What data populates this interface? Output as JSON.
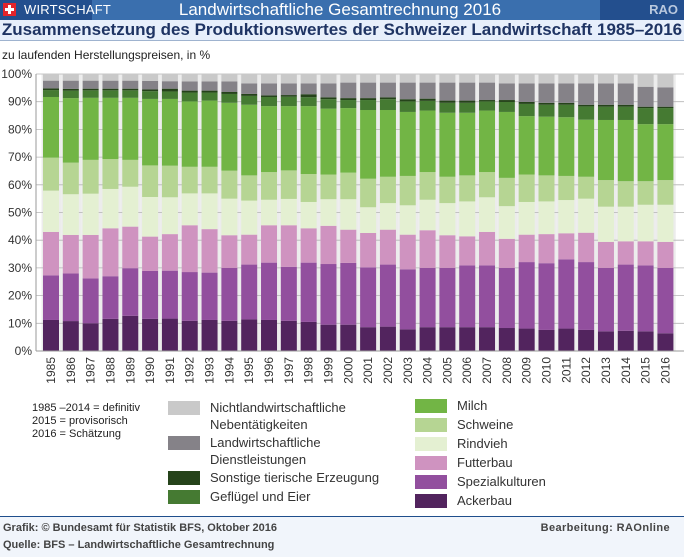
{
  "header": {
    "section_label": "WIRTSCHAFT",
    "title": "Landwirtschaftliche Gesamtrechnung 2016",
    "brand": "RAO",
    "flag_icon": "swiss-flag-icon"
  },
  "subheader": {
    "title": "Zusammensetzung des Produktionswertes der Schweizer Landwirtschaft 1985–2016"
  },
  "notes": {
    "unit": "zu laufenden Herstellungspreisen, in %",
    "status_lines": [
      "1985 –2014 = definitiv",
      "2015 = provisorisch",
      "2016 = Schätzung"
    ]
  },
  "footer": {
    "graphic_credit": "Grafik: © Bundesamt für Statistik BFS, Oktober 2016",
    "source": "Quelle: BFS – Landwirtschaftliche Gesamtrechnung",
    "editor": "Bearbeitung: RAOnline"
  },
  "chart_data": {
    "type": "bar",
    "stacked": true,
    "title": "Zusammensetzung des Produktionswertes der Schweizer Landwirtschaft 1985–2016",
    "xlabel": "",
    "ylabel": "zu laufenden Herstellungspreisen, in %",
    "ylim": [
      0,
      100
    ],
    "yticks": [
      "0%",
      "10%",
      "20%",
      "30%",
      "40%",
      "50%",
      "60%",
      "70%",
      "80%",
      "90%",
      "100%"
    ],
    "grid": true,
    "legend_position": "bottom",
    "categories": [
      "1985",
      "1986",
      "1987",
      "1988",
      "1989",
      "1990",
      "1991",
      "1992",
      "1993",
      "1994",
      "1995",
      "1996",
      "1997",
      "1998",
      "1999",
      "2000",
      "2001",
      "2002",
      "2003",
      "2004",
      "2005",
      "2006",
      "2007",
      "2008",
      "2009",
      "2010",
      "2011",
      "2012",
      "2013",
      "2014",
      "2015",
      "2016"
    ],
    "series": [
      {
        "name": "Ackerbau",
        "color": "#52245e",
        "values": [
          11.2,
          10.8,
          10.0,
          11.6,
          12.7,
          11.6,
          11.7,
          10.9,
          11.2,
          10.9,
          11.4,
          11.2,
          10.9,
          10.5,
          9.5,
          9.5,
          8.6,
          8.8,
          7.8,
          8.6,
          8.6,
          8.6,
          8.6,
          8.3,
          8.1,
          7.6,
          8.1,
          7.6,
          7.1,
          7.3,
          7.1,
          6.4
        ]
      },
      {
        "name": "Spezialkulturen",
        "color": "#924f9e",
        "values": [
          16.1,
          17.2,
          16.2,
          15.4,
          17.2,
          17.3,
          17.3,
          17.6,
          17.1,
          19.1,
          19.8,
          20.7,
          19.5,
          21.4,
          21.9,
          22.3,
          21.6,
          22.4,
          21.7,
          21.4,
          21.4,
          22.3,
          22.3,
          21.7,
          24.0,
          24.1,
          25.0,
          24.5,
          22.9,
          23.9,
          23.8,
          23.6
        ]
      },
      {
        "name": "Futterbau",
        "color": "#cf93c0",
        "values": [
          15.7,
          13.9,
          15.7,
          17.3,
          15.0,
          12.4,
          13.2,
          16.9,
          15.7,
          11.8,
          10.8,
          13.5,
          15.0,
          12.4,
          13.8,
          12.0,
          12.4,
          12.6,
          12.5,
          13.6,
          11.8,
          10.5,
          12.1,
          10.5,
          9.9,
          10.5,
          9.4,
          10.6,
          9.4,
          8.4,
          8.7,
          9.4
        ]
      },
      {
        "name": "Rindvieh",
        "color": "#e4f0d2",
        "values": [
          14.9,
          14.7,
          14.9,
          14.2,
          14.4,
          14.3,
          13.3,
          11.5,
          12.9,
          13.2,
          12.3,
          9.2,
          9.5,
          9.5,
          9.6,
          11.0,
          9.3,
          9.6,
          10.6,
          11.0,
          11.6,
          12.6,
          12.5,
          11.8,
          11.8,
          11.8,
          12.0,
          12.3,
          12.7,
          12.5,
          13.2,
          13.4
        ]
      },
      {
        "name": "Schweine",
        "color": "#b6d593",
        "values": [
          11.9,
          11.4,
          12.2,
          10.8,
          9.7,
          11.4,
          11.4,
          9.6,
          9.6,
          10.1,
          9.1,
          10.0,
          10.3,
          10.1,
          8.9,
          9.6,
          10.3,
          9.5,
          10.6,
          10.0,
          9.5,
          9.4,
          9.1,
          10.2,
          9.9,
          9.4,
          8.7,
          7.9,
          9.6,
          9.2,
          8.5,
          8.9
        ]
      },
      {
        "name": "Milch",
        "color": "#72b545",
        "values": [
          21.9,
          23.3,
          22.4,
          22.1,
          22.4,
          24.0,
          24.1,
          23.6,
          23.9,
          24.5,
          25.5,
          23.8,
          23.2,
          24.5,
          23.8,
          23.3,
          24.8,
          24.1,
          23.1,
          22.2,
          23.1,
          22.6,
          22.2,
          23.8,
          21.1,
          21.2,
          21.2,
          20.6,
          21.7,
          22.1,
          20.6,
          20.2
        ]
      },
      {
        "name": "Geflügel und Eier",
        "color": "#457a32",
        "values": [
          2.5,
          2.7,
          2.7,
          2.7,
          2.7,
          2.8,
          2.7,
          3.2,
          2.9,
          3.2,
          3.2,
          3.3,
          3.4,
          3.2,
          3.4,
          2.9,
          3.6,
          3.9,
          3.8,
          3.5,
          3.6,
          3.6,
          3.3,
          3.6,
          4.4,
          4.3,
          4.5,
          4.8,
          4.8,
          4.8,
          5.8,
          5.8
        ]
      },
      {
        "name": "Sonstige tierische Erzeugung",
        "color": "#25431a",
        "values": [
          0.6,
          0.6,
          0.6,
          0.6,
          0.6,
          0.6,
          1.0,
          0.7,
          0.7,
          0.7,
          0.7,
          0.6,
          0.6,
          1.1,
          0.7,
          0.7,
          0.7,
          0.7,
          0.8,
          0.8,
          0.8,
          0.8,
          0.5,
          0.7,
          0.7,
          0.7,
          0.7,
          0.6,
          0.7,
          0.7,
          0.5,
          0.5
        ]
      },
      {
        "name": "Landwirtschaftliche Dienstleistungen",
        "color": "#858288",
        "values": [
          2.8,
          3.0,
          2.9,
          2.9,
          2.9,
          3.1,
          2.7,
          3.3,
          3.3,
          3.8,
          3.8,
          4.3,
          4.2,
          3.9,
          5.0,
          5.6,
          5.6,
          5.3,
          6.0,
          5.8,
          6.5,
          6.5,
          6.3,
          6.0,
          6.7,
          7.0,
          7.0,
          7.7,
          7.7,
          7.7,
          7.2,
          7.0
        ]
      },
      {
        "name": "Nichtlandwirtschaftliche Nebentätigkeiten",
        "color": "#c9c9c9",
        "values": [
          2.4,
          2.4,
          2.4,
          2.4,
          2.4,
          2.5,
          2.6,
          2.7,
          2.7,
          2.7,
          3.4,
          3.4,
          3.4,
          3.4,
          3.4,
          3.1,
          3.1,
          3.1,
          3.1,
          3.1,
          3.1,
          3.1,
          3.1,
          3.4,
          3.4,
          3.4,
          3.4,
          3.4,
          3.4,
          3.4,
          4.6,
          4.8
        ]
      }
    ],
    "legend": {
      "left_column": [
        {
          "label": "Nichtlandwirtschaftliche Nebentätigkeiten",
          "line1": "Nichtlandwirtschaftliche",
          "line2": "Nebentätigkeiten",
          "color": "#c9c9c9"
        },
        {
          "label": "Landwirtschaftliche Dienstleistungen",
          "line1": "Landwirtschaftliche",
          "line2": "Dienstleistungen",
          "color": "#858288"
        },
        {
          "label": "Sonstige tierische Erzeugung",
          "line1": "Sonstige tierische Erzeugung",
          "line2": "",
          "color": "#25431a"
        },
        {
          "label": "Geflügel und Eier",
          "line1": "Geflügel und Eier",
          "line2": "",
          "color": "#457a32"
        }
      ],
      "right_column": [
        {
          "label": "Milch",
          "color": "#72b545"
        },
        {
          "label": "Schweine",
          "color": "#b6d593"
        },
        {
          "label": "Rindvieh",
          "color": "#e4f0d2"
        },
        {
          "label": "Futterbau",
          "color": "#cf93c0"
        },
        {
          "label": "Spezialkulturen",
          "color": "#924f9e"
        },
        {
          "label": "Ackerbau",
          "color": "#52245e"
        }
      ]
    },
    "column_background": "#ececec"
  }
}
